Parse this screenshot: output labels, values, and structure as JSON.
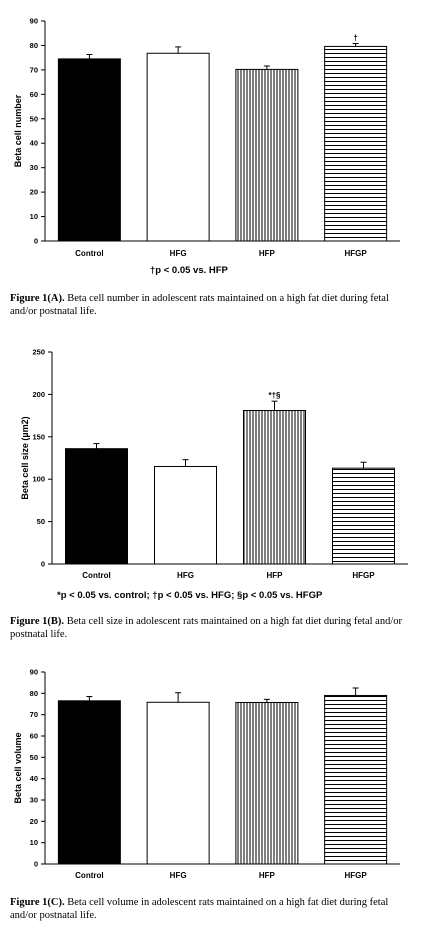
{
  "chart_data": [
    {
      "type": "bar",
      "categories": [
        "Control",
        "HFG",
        "HFP",
        "HFGP"
      ],
      "values": [
        74.5,
        76.8,
        70.2,
        79.6
      ],
      "errors": [
        1.8,
        2.6,
        1.4,
        1.2
      ],
      "annotations": [
        "",
        "",
        "",
        "†"
      ],
      "ylabel": "Beta cell number",
      "ylim": [
        0,
        90
      ],
      "yticks": [
        0,
        10,
        20,
        30,
        40,
        50,
        60,
        70,
        80,
        90
      ],
      "bar_patterns": [
        "solid",
        "white",
        "vertical",
        "horizontal"
      ]
    },
    {
      "type": "bar",
      "categories": [
        "Control",
        "HFG",
        "HFP",
        "HFGP"
      ],
      "values": [
        136,
        115,
        181,
        113
      ],
      "errors": [
        6,
        8,
        11,
        7
      ],
      "annotations": [
        "",
        "",
        "*†§",
        ""
      ],
      "ylabel": "Beta cell size (µm2)",
      "ylim": [
        0,
        250
      ],
      "yticks": [
        0,
        50,
        100,
        150,
        200,
        250
      ],
      "bar_patterns": [
        "solid",
        "white",
        "vertical",
        "horizontal"
      ]
    },
    {
      "type": "bar",
      "categories": [
        "Control",
        "HFG",
        "HFP",
        "HFGP"
      ],
      "values": [
        76.5,
        75.8,
        75.7,
        79.0
      ],
      "errors": [
        2.0,
        4.5,
        1.5,
        3.5
      ],
      "annotations": [
        "",
        "",
        "",
        ""
      ],
      "ylabel": "Beta cell volume",
      "ylim": [
        0,
        90
      ],
      "yticks": [
        0,
        10,
        20,
        30,
        40,
        50,
        60,
        70,
        80,
        90
      ],
      "bar_patterns": [
        "solid",
        "white",
        "vertical",
        "horizontal"
      ]
    }
  ],
  "footnotes": {
    "a": "†p < 0.05 vs. HFP",
    "b": "*p < 0.05 vs. control; †p < 0.05 vs. HFG; §p < 0.05 vs. HFGP"
  },
  "captions": {
    "a_label": "Figure 1(A).",
    "a_text": " Beta cell number in adolescent rats maintained on a high fat diet during fetal and/or postnatal life.",
    "b_label": "Figure 1(B).",
    "b_text": " Beta cell size in adolescent rats maintained on a high fat diet during fetal and/or postnatal life.",
    "c_label": "Figure 1(C).",
    "c_text": " Beta cell volume in adolescent rats maintained on a high fat diet during fetal and/or postnatal life."
  },
  "colors": {
    "bar_fill": "#000000",
    "bar_stroke": "#000000",
    "background": "#ffffff"
  }
}
